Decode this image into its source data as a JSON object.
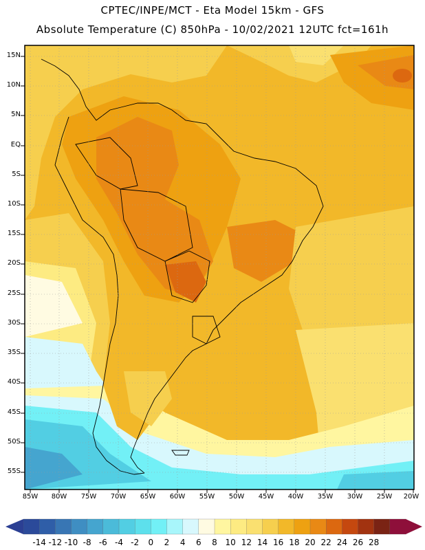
{
  "header": {
    "line1": "CPTEC/INPE/MCT -   Eta Model 15km - GFS",
    "line2": "Absolute Temperature (C) 850hPa - 10/02/2021 12UTC fct=161h"
  },
  "map": {
    "lat_labels": [
      "15N",
      "10N",
      "5N",
      "EQ",
      "5S",
      "10S",
      "15S",
      "20S",
      "25S",
      "30S",
      "35S",
      "40S",
      "45S",
      "50S",
      "55S"
    ],
    "lon_labels": [
      "85W",
      "80W",
      "75W",
      "70W",
      "65W",
      "60W",
      "55W",
      "50W",
      "45W",
      "40W",
      "35W",
      "30W",
      "25W",
      "20W"
    ]
  },
  "colorbar": {
    "labels": [
      "-14",
      "-12",
      "-10",
      "-8",
      "-6",
      "-4",
      "-2",
      "0",
      "2",
      "4",
      "6",
      "8",
      "10",
      "12",
      "14",
      "16",
      "18",
      "20",
      "22",
      "24",
      "26",
      "28"
    ],
    "colors": [
      "#2b4a9a",
      "#2f5ea8",
      "#3876b4",
      "#3f8ec2",
      "#45a5cf",
      "#4bbbd9",
      "#52cee3",
      "#5de0ec",
      "#72f0f6",
      "#a8f6fb",
      "#d8f8fd",
      "#fffbe2",
      "#fff6a0",
      "#fdeb82",
      "#fae070",
      "#f6cf4e",
      "#f2b829",
      "#eea111",
      "#e98915",
      "#dc6810",
      "#c5480f",
      "#a23310",
      "#7a2314",
      "#8e0f3a"
    ],
    "end_low_color": "#2b3f93",
    "end_high_color": "#8e0f3a"
  }
}
